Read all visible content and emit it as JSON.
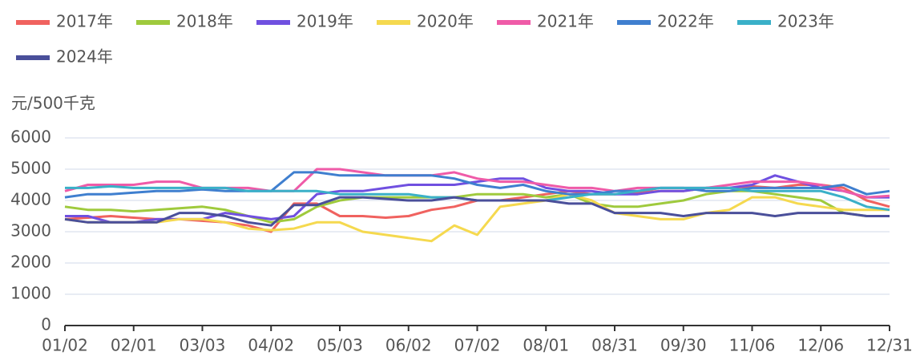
{
  "chart_data": {
    "type": "line",
    "y_label": "元/500千克",
    "categories": [
      "01/02",
      null,
      null,
      "02/01",
      null,
      null,
      "03/03",
      null,
      null,
      "04/02",
      null,
      null,
      "05/03",
      null,
      null,
      "06/02",
      null,
      null,
      "07/02",
      null,
      null,
      "08/01",
      null,
      null,
      "08/31",
      null,
      null,
      "09/30",
      null,
      null,
      "11/06",
      null,
      null,
      "12/06",
      null,
      null,
      "12/31"
    ],
    "ylim": [
      0,
      6000
    ],
    "yticks": [
      0,
      1000,
      2000,
      3000,
      4000,
      5000,
      6000
    ],
    "grid": true,
    "legend": "top",
    "series": [
      {
        "name": "2017年",
        "color": "#f0625f",
        "values": [
          3400,
          3450,
          3500,
          3450,
          3400,
          3400,
          3350,
          3300,
          3200,
          3000,
          3900,
          3900,
          3500,
          3500,
          3450,
          3500,
          3700,
          3800,
          4000,
          4000,
          4100,
          4200,
          4300,
          4200,
          4200,
          4250,
          4300,
          4300,
          4400,
          4400,
          4450,
          4400,
          4500,
          4500,
          4400,
          4000,
          3800
        ]
      },
      {
        "name": "2018年",
        "color": "#9fca3d",
        "values": [
          3800,
          3700,
          3700,
          3650,
          3700,
          3750,
          3800,
          3700,
          3500,
          3300,
          3400,
          3800,
          4000,
          4100,
          4100,
          4100,
          4100,
          4100,
          4200,
          4200,
          4200,
          4100,
          4200,
          3900,
          3800,
          3800,
          3900,
          4000,
          4200,
          4300,
          4300,
          4200,
          4100,
          4000,
          3600,
          3500,
          3500
        ]
      },
      {
        "name": "2019年",
        "color": "#7050e0",
        "values": [
          3500,
          3500,
          3300,
          3300,
          3400,
          3400,
          3400,
          3600,
          3500,
          3400,
          3500,
          4200,
          4300,
          4300,
          4400,
          4500,
          4500,
          4500,
          4600,
          4700,
          4700,
          4400,
          4300,
          4300,
          4200,
          4200,
          4300,
          4300,
          4400,
          4400,
          4500,
          4800,
          4600,
          4400,
          4300,
          4100,
          4100
        ]
      },
      {
        "name": "2020年",
        "color": "#f5d94f",
        "values": [
          3400,
          3300,
          3300,
          3300,
          3300,
          3400,
          3400,
          3300,
          3100,
          3050,
          3100,
          3300,
          3300,
          3000,
          2900,
          2800,
          2700,
          3200,
          2900,
          3800,
          3900,
          4000,
          4200,
          4000,
          3600,
          3500,
          3400,
          3400,
          3600,
          3700,
          4100,
          4100,
          3900,
          3800,
          3700,
          3700,
          3700
        ]
      },
      {
        "name": "2021年",
        "color": "#ef5ba8",
        "values": [
          4300,
          4500,
          4500,
          4500,
          4600,
          4600,
          4400,
          4400,
          4400,
          4300,
          4300,
          5000,
          5000,
          4900,
          4800,
          4800,
          4800,
          4900,
          4700,
          4600,
          4600,
          4500,
          4400,
          4400,
          4300,
          4400,
          4400,
          4400,
          4400,
          4500,
          4600,
          4600,
          4600,
          4500,
          4300,
          4100,
          4150
        ]
      },
      {
        "name": "2022年",
        "color": "#3f7fcf",
        "values": [
          4100,
          4200,
          4200,
          4250,
          4300,
          4300,
          4350,
          4300,
          4300,
          4300,
          4900,
          4900,
          4800,
          4800,
          4800,
          4800,
          4800,
          4700,
          4500,
          4400,
          4500,
          4300,
          4200,
          4200,
          4300,
          4300,
          4400,
          4400,
          4300,
          4300,
          4400,
          4400,
          4400,
          4400,
          4500,
          4200,
          4300
        ]
      },
      {
        "name": "2023年",
        "color": "#3ab0c8",
        "values": [
          4400,
          4400,
          4450,
          4400,
          4400,
          4400,
          4400,
          4400,
          4300,
          4300,
          4300,
          4300,
          4200,
          4200,
          4200,
          4200,
          4100,
          4100,
          4000,
          4000,
          4000,
          4000,
          4100,
          4200,
          4200,
          4300,
          4400,
          4400,
          4400,
          4400,
          4300,
          4300,
          4300,
          4300,
          4100,
          3800,
          3700
        ]
      },
      {
        "name": "2024年",
        "color": "#4a4f9a",
        "values": [
          3400,
          3300,
          3300,
          3300,
          3300,
          3600,
          3600,
          3500,
          3300,
          3200,
          3850,
          3850,
          4100,
          4100,
          4050,
          4000,
          4000,
          4100,
          4000,
          4000,
          4000,
          4000,
          3900,
          3900,
          3600,
          3600,
          3600,
          3500,
          3600,
          3600,
          3600,
          3500,
          3600,
          3600,
          3600,
          3500,
          3500
        ]
      }
    ]
  }
}
